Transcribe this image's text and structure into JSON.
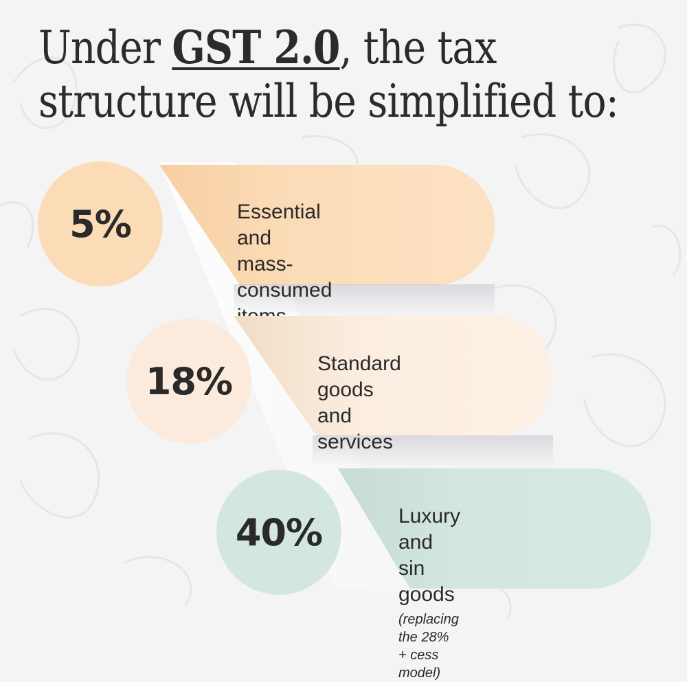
{
  "title": {
    "before": "Under ",
    "highlight": "GST 2.0",
    "after": ", the tax",
    "line2": "structure will be simplified to:"
  },
  "tiers": [
    {
      "rate": "5%",
      "desc_line1": "Essential and mass-",
      "desc_line2": "consumed items",
      "note": "",
      "color": "#fbdcb8",
      "circle_color": "#fcdcb6"
    },
    {
      "rate": "18%",
      "desc_line1": "Standard goods and",
      "desc_line2": "services",
      "note": "",
      "color": "#fbeee1",
      "circle_color": "#fcebdc"
    },
    {
      "rate": "40%",
      "desc_line1": "Luxury and sin goods",
      "desc_line2": "",
      "note": "(replacing the 28% + cess model)",
      "color": "#d4e6e1",
      "circle_color": "#d4e6e0"
    }
  ]
}
